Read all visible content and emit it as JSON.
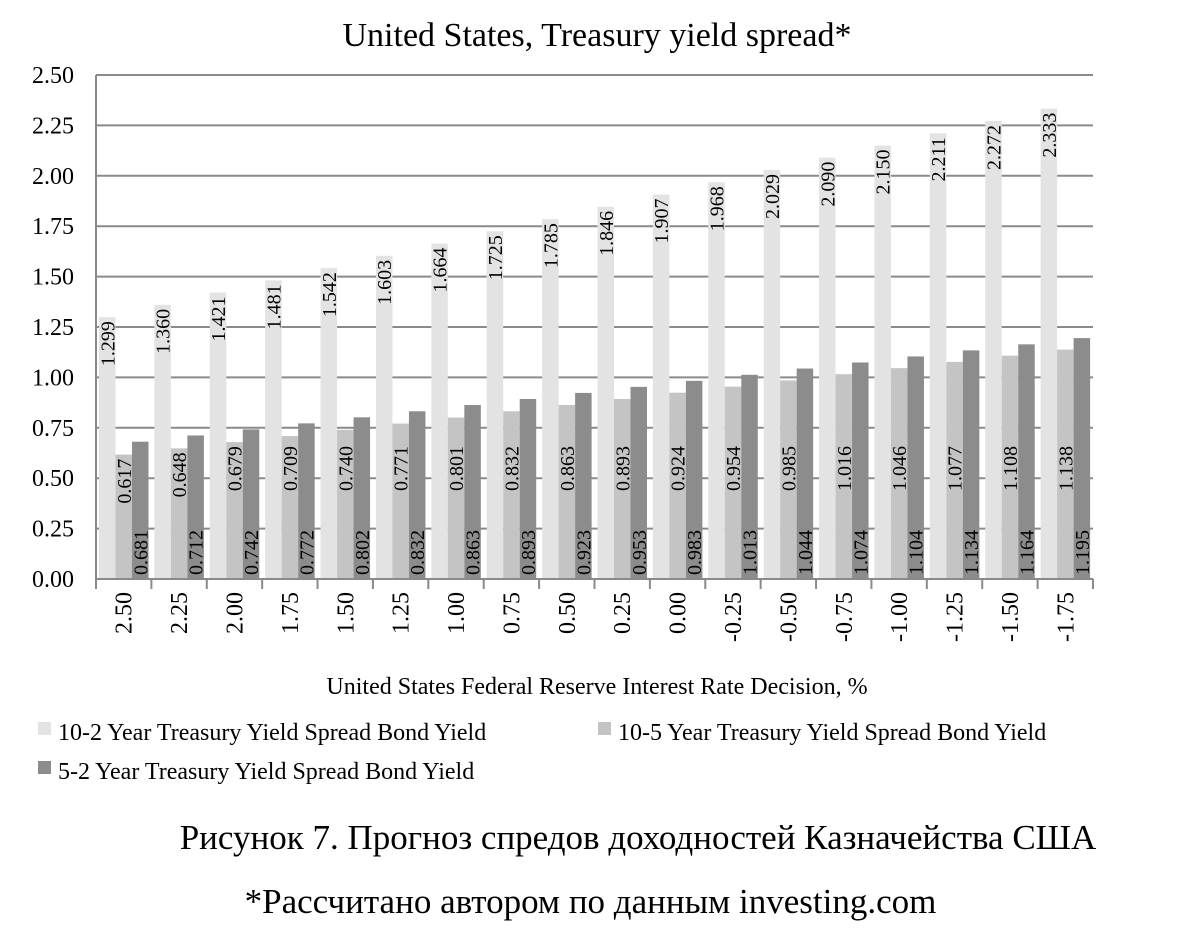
{
  "chart_data": {
    "type": "bar",
    "title": "United States, Treasury yield spread*",
    "xlabel": "United States Federal Reserve Interest Rate Decision, %",
    "ylabel": "",
    "ylim": [
      0,
      2.5
    ],
    "yticks": [
      "0.00",
      "0.25",
      "0.50",
      "0.75",
      "1.00",
      "1.25",
      "1.50",
      "1.75",
      "2.00",
      "2.25",
      "2.50"
    ],
    "grid": true,
    "legend_position": "bottom",
    "categories": [
      "2.50",
      "2.25",
      "2.00",
      "1.75",
      "1.50",
      "1.25",
      "1.00",
      "0.75",
      "0.50",
      "0.25",
      "0.00",
      "-0.25",
      "-0.50",
      "-0.75",
      "-1.00",
      "-1.25",
      "-1.50",
      "-1.75"
    ],
    "series": [
      {
        "name": "10-2 Year Treasury Yield Spread Bond Yield",
        "color": "#e3e3e3",
        "values": [
          1.299,
          1.36,
          1.421,
          1.481,
          1.542,
          1.603,
          1.664,
          1.725,
          1.785,
          1.846,
          1.907,
          1.968,
          2.029,
          2.09,
          2.15,
          2.211,
          2.272,
          2.333
        ],
        "labels": [
          "1.299",
          "1.360",
          "1.421",
          "1.481",
          "1.542",
          "1.603",
          "1.664",
          "1.725",
          "1.785",
          "1.846",
          "1.907",
          "1.968",
          "2.029",
          "2.090",
          "2.150",
          "2.211",
          "2.272",
          "2.333"
        ]
      },
      {
        "name": "10-5 Year Treasury Yield Spread Bond Yield",
        "color": "#c4c4c4",
        "values": [
          0.617,
          0.648,
          0.679,
          0.709,
          0.74,
          0.771,
          0.801,
          0.832,
          0.863,
          0.893,
          0.924,
          0.954,
          0.985,
          1.016,
          1.046,
          1.077,
          1.108,
          1.138
        ],
        "labels": [
          "0.617",
          "0.648",
          "0.679",
          "0.709",
          "0.740",
          "0.771",
          "0.801",
          "0.832",
          "0.863",
          "0.893",
          "0.924",
          "0.954",
          "0.985",
          "1.016",
          "1.046",
          "1.077",
          "1.108",
          "1.138"
        ]
      },
      {
        "name": "5-2 Year Treasury Yield Spread Bond Yield",
        "color": "#8c8c8c",
        "values": [
          0.681,
          0.712,
          0.742,
          0.772,
          0.802,
          0.832,
          0.863,
          0.893,
          0.923,
          0.953,
          0.983,
          1.013,
          1.044,
          1.074,
          1.104,
          1.134,
          1.164,
          1.195
        ],
        "labels": [
          "0.681",
          "0.712",
          "0.742",
          "0.772",
          "0.802",
          "0.832",
          "0.863",
          "0.893",
          "0.923",
          "0.953",
          "0.983",
          "1.013",
          "1.044",
          "1.074",
          "1.104",
          "1.134",
          "1.164",
          "1.195"
        ]
      }
    ]
  },
  "caption": "Рисунок 7. Прогноз спредов доходностей Казначейства США",
  "source_note": "*Рассчитано автором по данным investing.com"
}
